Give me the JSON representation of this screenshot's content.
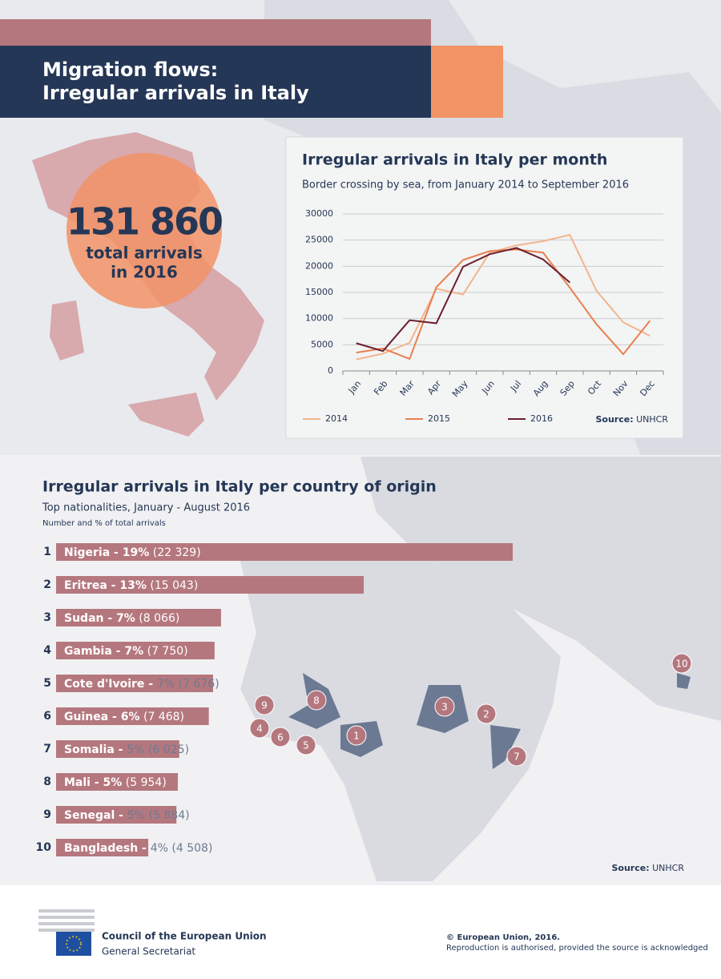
{
  "header": {
    "title_lines": [
      "Migration flows:",
      "Irregular arrivals in Italy"
    ]
  },
  "highlight": {
    "figure": "131 860",
    "caption_lines": [
      "total arrivals",
      "in 2016"
    ]
  },
  "chart_data": [
    {
      "type": "line",
      "title": "Irregular arrivals in Italy per month",
      "subtitle": "Border crossing by sea, from January 2014 to September 2016",
      "categories": [
        "Jan",
        "Feb",
        "Mar",
        "Apr",
        "May",
        "Jun",
        "Jul",
        "Aug",
        "Sep",
        "Oct",
        "Nov",
        "Dec"
      ],
      "series": [
        {
          "name": "2014",
          "color": "#f3b48e",
          "values": [
            2200,
            3300,
            5400,
            15700,
            14600,
            22600,
            24000,
            24800,
            26000,
            15300,
            9300,
            6700
          ]
        },
        {
          "name": "2015",
          "color": "#e8804f",
          "values": [
            3500,
            4300,
            2300,
            16000,
            21200,
            22900,
            23200,
            22600,
            15900,
            8900,
            3200,
            9600
          ]
        },
        {
          "name": "2016",
          "color": "#6b1f2e",
          "values": [
            5300,
            3800,
            9700,
            9100,
            19900,
            22300,
            23500,
            21300,
            16900,
            null,
            null,
            null
          ]
        }
      ],
      "ylim": [
        0,
        30000
      ],
      "yticks": [
        0,
        5000,
        10000,
        15000,
        20000,
        25000,
        30000
      ],
      "grid": true,
      "legend": "bottom-left",
      "source_label": "Source:",
      "source": "UNHCR"
    },
    {
      "type": "bar",
      "orientation": "horizontal",
      "title": "Irregular arrivals in Italy per country of origin",
      "subtitle": "Top nationalities, January - August 2016",
      "note": "Number and % of total arrivals",
      "ranks": [
        "1",
        "2",
        "3",
        "4",
        "5",
        "6",
        "7",
        "8",
        "9",
        "10"
      ],
      "categories": [
        "Nigeria",
        "Eritrea",
        "Sudan",
        "Gambia",
        "Cote d'Ivoire",
        "Guinea",
        "Somalia",
        "Mali",
        "Senegal",
        "Bangladesh"
      ],
      "share_labels": [
        "19%",
        "13%",
        "7%",
        "7%",
        "7%",
        "6%",
        "5%",
        "5%",
        "5%",
        "4%"
      ],
      "values": [
        22329,
        15043,
        8066,
        7750,
        7676,
        7468,
        6025,
        5954,
        5884,
        4508
      ],
      "value_labels": [
        "22 329",
        "15 043",
        "8 066",
        "7 750",
        "7 676",
        "7 468",
        "6 025",
        "5 954",
        "5 884",
        "4 508"
      ],
      "color": "#b5777e",
      "source_label": "Source:",
      "source": "UNHCR"
    }
  ],
  "footer": {
    "org": "Council of the European Union",
    "dept": "General Secretariat",
    "copyright": "© European Union, 2016.",
    "rights": "Reproduction is authorised, provided the source is acknowledged"
  }
}
